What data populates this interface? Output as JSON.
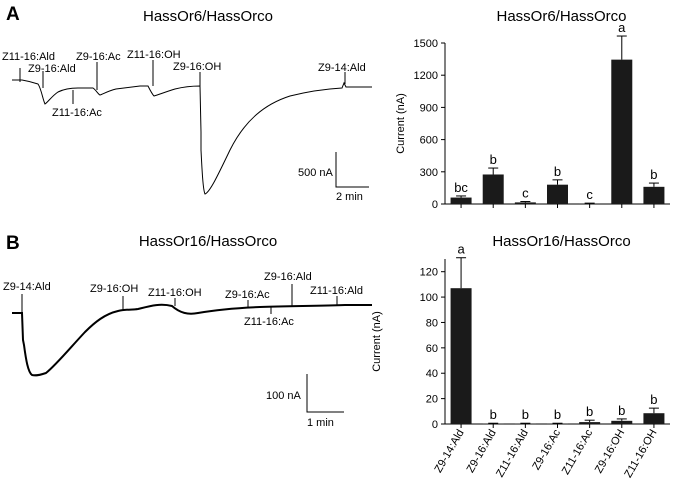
{
  "panelA": {
    "letter": "A",
    "trace": {
      "title": "HassOr6/HassOrco",
      "stimuli": [
        "Z11-16:Ald",
        "Z9-16:Ald",
        "Z11-16:Ac",
        "Z9-16:Ac",
        "Z11-16:OH",
        "Z9-16:OH",
        "Z9-14:Ald"
      ],
      "scale_bar": {
        "y_label": "500 nA",
        "x_label": "2 min"
      }
    }
  },
  "panelB": {
    "letter": "B",
    "trace": {
      "title": "HassOr16/HassOrco",
      "stimuli": [
        "Z9-14:Ald",
        "Z9-16:OH",
        "Z11-16:OH",
        "Z9-16:Ac",
        "Z11-16:Ac",
        "Z9-16:Ald",
        "Z11-16:Ald"
      ],
      "scale_bar": {
        "y_label": "100 nA",
        "x_label": "1 min"
      }
    }
  },
  "chart_data": [
    {
      "type": "bar",
      "title": "HassOr6/HassOrco",
      "ylabel": "Current (nA)",
      "ylim": [
        0,
        1500
      ],
      "yticks": [
        0,
        300,
        600,
        900,
        1200,
        1500
      ],
      "categories": [
        "Z9-14:Ald",
        "Z9-16:Ald",
        "Z11-16:Ald",
        "Z9-16:Ac",
        "Z11-16:Ac",
        "Z9-16:OH",
        "Z11-16:OH"
      ],
      "values": [
        60,
        275,
        15,
        180,
        5,
        1345,
        160
      ],
      "errors": [
        15,
        60,
        8,
        45,
        3,
        220,
        35
      ],
      "significance": [
        "bc",
        "b",
        "c",
        "b",
        "c",
        "a",
        "b"
      ],
      "show_category_labels": false
    },
    {
      "type": "bar",
      "title": "HassOr16/HassOrco",
      "ylabel": "Current (nA)",
      "ylim": [
        0,
        130
      ],
      "yticks": [
        0,
        20,
        40,
        60,
        80,
        100,
        120
      ],
      "categories": [
        "Z9-14:Ald",
        "Z9-16:Ald",
        "Z11-16:Ald",
        "Z9-16:Ac",
        "Z11-16:Ac",
        "Z9-16:OH",
        "Z11-16:OH"
      ],
      "values": [
        107,
        0.3,
        0.3,
        0.3,
        1.5,
        2.5,
        8.5
      ],
      "errors": [
        24,
        0.3,
        0.3,
        0.3,
        1.5,
        1.5,
        4
      ],
      "significance": [
        "a",
        "b",
        "b",
        "b",
        "b",
        "b",
        "b"
      ],
      "show_category_labels": true
    }
  ]
}
